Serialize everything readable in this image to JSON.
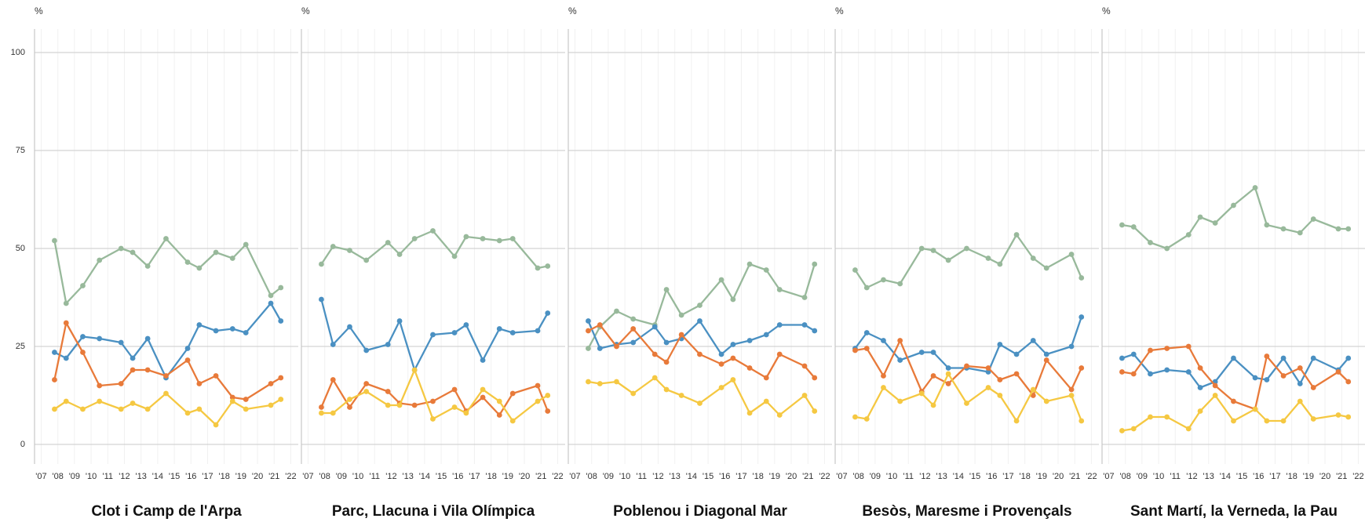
{
  "chart_data": [
    {
      "type": "line",
      "title": "Clot i Camp de l'Arpa",
      "y_label": "%",
      "show_ytick_labels": true,
      "x": [
        2007.8,
        2008.5,
        2009.5,
        2010.5,
        2011.8,
        2012.5,
        2013.4,
        2014.5,
        2015.8,
        2016.5,
        2017.5,
        2018.5,
        2019.3,
        2020.8,
        2021.4
      ],
      "series": [
        {
          "color": "#98b99b",
          "values": [
            52,
            36,
            40.5,
            47,
            50,
            49,
            45.5,
            52.5,
            46.5,
            45,
            49,
            47.5,
            51,
            38,
            40
          ]
        },
        {
          "color": "#4a90c2",
          "values": [
            23.5,
            22,
            27.5,
            27,
            26,
            22,
            27,
            17,
            24.5,
            30.5,
            29,
            29.5,
            28.5,
            36,
            31.5
          ]
        },
        {
          "color": "#e87a3a",
          "values": [
            16.5,
            31,
            23.5,
            15,
            15.5,
            19,
            19,
            17.5,
            21.5,
            15.5,
            17.5,
            12,
            11.5,
            15.5,
            17
          ]
        },
        {
          "color": "#f5c842",
          "values": [
            9,
            11,
            9,
            11,
            9,
            10.5,
            9,
            13,
            8,
            9,
            5,
            11,
            9,
            10,
            11.5
          ]
        }
      ],
      "xlim": [
        2006.6,
        2022.45
      ],
      "ylim": [
        -5,
        106
      ],
      "xticks": [
        {
          "value": 2007,
          "label": "'07"
        },
        {
          "value": 2008,
          "label": "'08"
        },
        {
          "value": 2009,
          "label": "'09"
        },
        {
          "value": 2010,
          "label": "'10"
        },
        {
          "value": 2011,
          "label": "'11"
        },
        {
          "value": 2012,
          "label": "'12"
        },
        {
          "value": 2013,
          "label": "'13"
        },
        {
          "value": 2014,
          "label": "'14"
        },
        {
          "value": 2015,
          "label": "'15"
        },
        {
          "value": 2016,
          "label": "'16"
        },
        {
          "value": 2017,
          "label": "'17"
        },
        {
          "value": 2018,
          "label": "'18"
        },
        {
          "value": 2019,
          "label": "'19"
        },
        {
          "value": 2020,
          "label": "'20"
        },
        {
          "value": 2021,
          "label": "'21"
        },
        {
          "value": 2022,
          "label": "'22"
        }
      ],
      "yticks": [
        0,
        25,
        50,
        75,
        100
      ],
      "grid": true
    },
    {
      "type": "line",
      "title": "Parc, Llacuna i Vila Olímpica",
      "y_label": "%",
      "show_ytick_labels": false,
      "x": [
        2007.8,
        2008.5,
        2009.5,
        2010.5,
        2011.8,
        2012.5,
        2013.4,
        2014.5,
        2015.8,
        2016.5,
        2017.5,
        2018.5,
        2019.3,
        2020.8,
        2021.4
      ],
      "series": [
        {
          "color": "#98b99b",
          "values": [
            46,
            50.5,
            49.5,
            47,
            51.5,
            48.5,
            52.5,
            54.5,
            48,
            53,
            52.5,
            52,
            52.5,
            45,
            45.5
          ]
        },
        {
          "color": "#4a90c2",
          "values": [
            37,
            25.5,
            30,
            24,
            25.5,
            31.5,
            19,
            28,
            28.5,
            30.5,
            21.5,
            29.5,
            28.5,
            29,
            33.5
          ]
        },
        {
          "color": "#e87a3a",
          "values": [
            9.5,
            16.5,
            9.5,
            15.5,
            13.5,
            10.5,
            10,
            11,
            14,
            8.5,
            12,
            7.5,
            13,
            15,
            8.5
          ]
        },
        {
          "color": "#f5c842",
          "values": [
            8,
            8,
            11.5,
            13.5,
            10,
            10,
            19,
            6.5,
            9.5,
            8,
            14,
            11,
            6,
            11,
            12.5
          ]
        }
      ],
      "xlim": [
        2006.6,
        2022.45
      ],
      "ylim": [
        -5,
        106
      ],
      "xticks": [
        {
          "value": 2007,
          "label": "'07"
        },
        {
          "value": 2008,
          "label": "'08"
        },
        {
          "value": 2009,
          "label": "'09"
        },
        {
          "value": 2010,
          "label": "'10"
        },
        {
          "value": 2011,
          "label": "'11"
        },
        {
          "value": 2012,
          "label": "'12"
        },
        {
          "value": 2013,
          "label": "'13"
        },
        {
          "value": 2014,
          "label": "'14"
        },
        {
          "value": 2015,
          "label": "'15"
        },
        {
          "value": 2016,
          "label": "'16"
        },
        {
          "value": 2017,
          "label": "'17"
        },
        {
          "value": 2018,
          "label": "'18"
        },
        {
          "value": 2019,
          "label": "'19"
        },
        {
          "value": 2020,
          "label": "'20"
        },
        {
          "value": 2021,
          "label": "'21"
        },
        {
          "value": 2022,
          "label": "'22"
        }
      ],
      "yticks": [
        0,
        25,
        50,
        75,
        100
      ],
      "grid": true
    },
    {
      "type": "line",
      "title": "Poblenou i Diagonal Mar",
      "y_label": "%",
      "show_ytick_labels": false,
      "x": [
        2007.8,
        2008.5,
        2009.5,
        2010.5,
        2011.8,
        2012.5,
        2013.4,
        2014.5,
        2015.8,
        2016.5,
        2017.5,
        2018.5,
        2019.3,
        2020.8,
        2021.4
      ],
      "series": [
        {
          "color": "#98b99b",
          "values": [
            24.5,
            30,
            34,
            32,
            30.5,
            39.5,
            33,
            35.5,
            42,
            37,
            46,
            44.5,
            39.5,
            37.5,
            46
          ]
        },
        {
          "color": "#4a90c2",
          "values": [
            31.5,
            24.5,
            25.5,
            26,
            30,
            26,
            27,
            31.5,
            23,
            25.5,
            26.5,
            28,
            30.5,
            30.5,
            29
          ]
        },
        {
          "color": "#e87a3a",
          "values": [
            29,
            30.5,
            25,
            29.5,
            23,
            21,
            28,
            23,
            20.5,
            22,
            19.5,
            17,
            23,
            20,
            17
          ]
        },
        {
          "color": "#f5c842",
          "values": [
            16,
            15.5,
            16,
            13,
            17,
            14,
            12.5,
            10.5,
            14.5,
            16.5,
            8,
            11,
            7.5,
            12.5,
            8.5
          ]
        }
      ],
      "xlim": [
        2006.6,
        2022.45
      ],
      "ylim": [
        -5,
        106
      ],
      "xticks": [
        {
          "value": 2007,
          "label": "'07"
        },
        {
          "value": 2008,
          "label": "'08"
        },
        {
          "value": 2009,
          "label": "'09"
        },
        {
          "value": 2010,
          "label": "'10"
        },
        {
          "value": 2011,
          "label": "'11"
        },
        {
          "value": 2012,
          "label": "'12"
        },
        {
          "value": 2013,
          "label": "'13"
        },
        {
          "value": 2014,
          "label": "'14"
        },
        {
          "value": 2015,
          "label": "'15"
        },
        {
          "value": 2016,
          "label": "'16"
        },
        {
          "value": 2017,
          "label": "'17"
        },
        {
          "value": 2018,
          "label": "'18"
        },
        {
          "value": 2019,
          "label": "'19"
        },
        {
          "value": 2020,
          "label": "'20"
        },
        {
          "value": 2021,
          "label": "'21"
        },
        {
          "value": 2022,
          "label": "'22"
        }
      ],
      "yticks": [
        0,
        25,
        50,
        75,
        100
      ],
      "grid": true
    },
    {
      "type": "line",
      "title": "Besòs, Maresme i Provençals",
      "y_label": "%",
      "show_ytick_labels": false,
      "x": [
        2007.8,
        2008.5,
        2009.5,
        2010.5,
        2011.8,
        2012.5,
        2013.4,
        2014.5,
        2015.8,
        2016.5,
        2017.5,
        2018.5,
        2019.3,
        2020.8,
        2021.4
      ],
      "series": [
        {
          "color": "#98b99b",
          "values": [
            44.5,
            40,
            42,
            41,
            50,
            49.5,
            47,
            50,
            47.5,
            46,
            53.5,
            47.5,
            45,
            48.5,
            42.5
          ]
        },
        {
          "color": "#4a90c2",
          "values": [
            24.5,
            28.5,
            26.5,
            21.5,
            23.5,
            23.5,
            19.5,
            19.5,
            18.5,
            25.5,
            23,
            26.5,
            23,
            25,
            32.5
          ]
        },
        {
          "color": "#e87a3a",
          "values": [
            24,
            24.5,
            17.5,
            26.5,
            13.5,
            17.5,
            15.5,
            20,
            19.5,
            16.5,
            18,
            12.5,
            21.5,
            14,
            19.5
          ]
        },
        {
          "color": "#f5c842",
          "values": [
            7,
            6.5,
            14.5,
            11,
            13,
            10,
            18,
            10.5,
            14.5,
            12.5,
            6,
            14,
            11,
            12.5,
            6
          ]
        }
      ],
      "xlim": [
        2006.6,
        2022.45
      ],
      "ylim": [
        -5,
        106
      ],
      "xticks": [
        {
          "value": 2007,
          "label": "'07"
        },
        {
          "value": 2008,
          "label": "'08"
        },
        {
          "value": 2009,
          "label": "'09"
        },
        {
          "value": 2010,
          "label": "'10"
        },
        {
          "value": 2011,
          "label": "'11"
        },
        {
          "value": 2012,
          "label": "'12"
        },
        {
          "value": 2013,
          "label": "'13"
        },
        {
          "value": 2014,
          "label": "'14"
        },
        {
          "value": 2015,
          "label": "'15"
        },
        {
          "value": 2016,
          "label": "'16"
        },
        {
          "value": 2017,
          "label": "'17"
        },
        {
          "value": 2018,
          "label": "'18"
        },
        {
          "value": 2019,
          "label": "'19"
        },
        {
          "value": 2020,
          "label": "'20"
        },
        {
          "value": 2021,
          "label": "'21"
        },
        {
          "value": 2022,
          "label": "'22"
        }
      ],
      "yticks": [
        0,
        25,
        50,
        75,
        100
      ],
      "grid": true
    },
    {
      "type": "line",
      "title": "Sant Martí, la Verneda, la Pau",
      "y_label": "%",
      "show_ytick_labels": false,
      "x": [
        2007.8,
        2008.5,
        2009.5,
        2010.5,
        2011.8,
        2012.5,
        2013.4,
        2014.5,
        2015.8,
        2016.5,
        2017.5,
        2018.5,
        2019.3,
        2020.8,
        2021.4
      ],
      "series": [
        {
          "color": "#98b99b",
          "values": [
            56,
            55.5,
            51.5,
            50,
            53.5,
            58,
            56.5,
            61,
            65.5,
            56,
            55,
            54,
            57.5,
            55,
            55
          ]
        },
        {
          "color": "#4a90c2",
          "values": [
            22,
            23,
            18,
            19,
            18.5,
            14.5,
            16,
            22,
            17,
            16.5,
            22,
            15.5,
            22,
            19,
            22
          ]
        },
        {
          "color": "#e87a3a",
          "values": [
            18.5,
            18,
            24,
            24.5,
            25,
            19.5,
            15,
            11,
            9,
            22.5,
            17.5,
            19.5,
            14.5,
            18.5,
            16
          ]
        },
        {
          "color": "#f5c842",
          "values": [
            3.5,
            4,
            7,
            7,
            4,
            8.5,
            12.5,
            6,
            9,
            6,
            6,
            11,
            6.5,
            7.5,
            7
          ]
        }
      ],
      "xlim": [
        2006.6,
        2022.45
      ],
      "ylim": [
        -5,
        106
      ],
      "xticks": [
        {
          "value": 2007,
          "label": "'07"
        },
        {
          "value": 2008,
          "label": "'08"
        },
        {
          "value": 2009,
          "label": "'09"
        },
        {
          "value": 2010,
          "label": "'10"
        },
        {
          "value": 2011,
          "label": "'11"
        },
        {
          "value": 2012,
          "label": "'12"
        },
        {
          "value": 2013,
          "label": "'13"
        },
        {
          "value": 2014,
          "label": "'14"
        },
        {
          "value": 2015,
          "label": "'15"
        },
        {
          "value": 2016,
          "label": "'16"
        },
        {
          "value": 2017,
          "label": "'17"
        },
        {
          "value": 2018,
          "label": "'18"
        },
        {
          "value": 2019,
          "label": "'19"
        },
        {
          "value": 2020,
          "label": "'20"
        },
        {
          "value": 2021,
          "label": "'21"
        },
        {
          "value": 2022,
          "label": "'22"
        }
      ],
      "yticks": [
        0,
        25,
        50,
        75,
        100
      ],
      "grid": true
    }
  ]
}
